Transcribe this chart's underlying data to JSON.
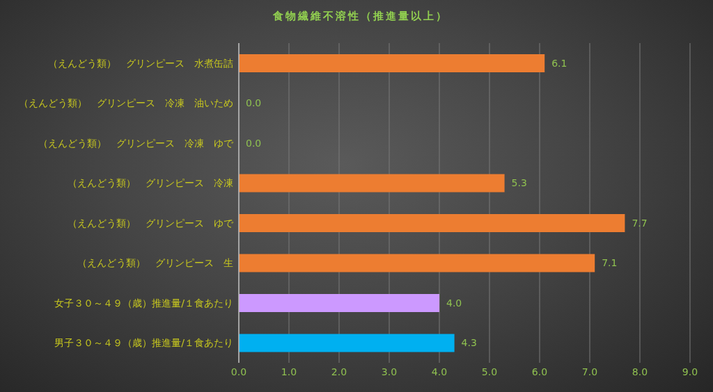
{
  "chart_data": {
    "type": "bar",
    "orientation": "horizontal",
    "title": "食物繊維不溶性（推進量以上）",
    "categories": [
      "（えんどう類）　グリンピース　水煮缶詰",
      "（えんどう類）　グリンピース　冷凍　油いため",
      "（えんどう類）　グリンピース　冷凍　ゆで",
      "（えんどう類）　グリンピース　冷凍",
      "（えんどう類）　グリンピース　ゆで",
      "（えんどう類）　グリンピース　生",
      "女子３０～４９（歳）推進量/１食あたり",
      "男子３０～４９（歳）推進量/１食あたり"
    ],
    "values": [
      6.1,
      0.0,
      0.0,
      5.3,
      7.7,
      7.1,
      4.0,
      4.3
    ],
    "colors": [
      "#ed7d31",
      "#ed7d31",
      "#ed7d31",
      "#ed7d31",
      "#ed7d31",
      "#ed7d31",
      "#cc99ff",
      "#00b0f0"
    ],
    "value_labels": [
      "6.1",
      "0.0",
      "0.0",
      "5.3",
      "7.7",
      "7.1",
      "4.0",
      "4.3"
    ],
    "xlim": [
      0,
      9
    ],
    "xticks": [
      {
        "value": 0,
        "label": "0.0"
      },
      {
        "value": 1,
        "label": "1.0"
      },
      {
        "value": 2,
        "label": "2.0"
      },
      {
        "value": 3,
        "label": "3.0"
      },
      {
        "value": 4,
        "label": "4.0"
      },
      {
        "value": 5,
        "label": "5.0"
      },
      {
        "value": 6,
        "label": "6.0"
      },
      {
        "value": 7,
        "label": "7.0"
      },
      {
        "value": 8,
        "label": "8.0"
      },
      {
        "value": 9,
        "label": "9.0"
      }
    ],
    "grid": "x"
  }
}
